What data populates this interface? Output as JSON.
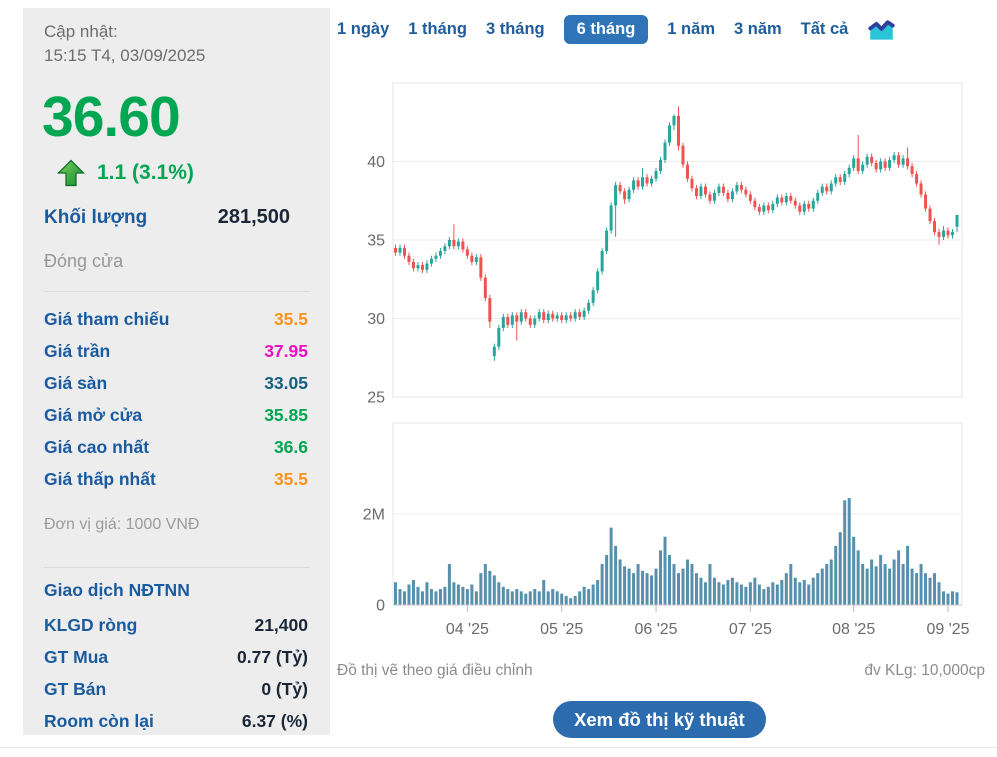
{
  "quote_panel": {
    "updated_label": "Cập nhật:",
    "updated_time": "15:15 T4, 03/09/2025",
    "price": "36.60",
    "change": "1.1 (3.1%)",
    "change_direction": "up",
    "volume_label": "Khối lượng",
    "volume_value": "281,500",
    "close_label": "Đóng cửa",
    "price_rows": [
      {
        "label": "Giá tham chiếu",
        "value": "35.5",
        "color": "#F7941E"
      },
      {
        "label": "Giá trần",
        "value": "37.95",
        "color": "#EB0FC4"
      },
      {
        "label": "Giá sàn",
        "value": "33.05",
        "color": "#17607F"
      },
      {
        "label": "Giá mở cửa",
        "value": "35.85",
        "color": "#00A651"
      },
      {
        "label": "Giá cao nhất",
        "value": "36.6",
        "color": "#00A651"
      },
      {
        "label": "Giá thấp nhất",
        "value": "35.5",
        "color": "#F7941E"
      }
    ],
    "unit_note": "Đơn vị giá: 1000 VNĐ",
    "foreign_header": "Giao dịch NĐTNN",
    "foreign_rows": [
      {
        "label": "KLGD ròng",
        "value": "21,400"
      },
      {
        "label": "GT Mua",
        "value": "0.77 (Tỷ)"
      },
      {
        "label": "GT Bán",
        "value": "0 (Tỷ)"
      },
      {
        "label": "Room còn lại",
        "value": "6.37 (%)"
      }
    ]
  },
  "tabs": {
    "items": [
      {
        "label": "1 ngày",
        "key": "1-ngay"
      },
      {
        "label": "1 tháng",
        "key": "1-thang"
      },
      {
        "label": "3 tháng",
        "key": "3-thang"
      },
      {
        "label": "6 tháng",
        "key": "6-thang"
      },
      {
        "label": "1 năm",
        "key": "1-nam"
      },
      {
        "label": "3 năm",
        "key": "3-nam"
      },
      {
        "label": "Tất cả",
        "key": "tat-ca"
      }
    ],
    "selected_index": 3
  },
  "footnotes": {
    "left": "Đồ thị vẽ theo giá điều chỉnh",
    "right": "đv KLg: 10,000cp"
  },
  "button_label": "Xem đồ thị kỹ thuật",
  "colors": {
    "up_green": "#00A651",
    "candle_up": "#26A69A",
    "candle_down": "#EF5350",
    "volume_bar": "#5790AC",
    "accent_blue": "#1A5A9E",
    "selected_tab": "#2E74B6",
    "grid": "#ECECEC",
    "pane_border": "#E4E4E4",
    "axis_line": "#C9C9C9",
    "axis_text": "#6B6B6B"
  },
  "chart_data": {
    "type": "candlestick+volume",
    "title": "",
    "price_axis": {
      "ticks": [
        40,
        35,
        30,
        25
      ],
      "range": [
        25,
        45.4
      ],
      "unit": "1000 VND"
    },
    "volume_axis": {
      "tick_labels": [
        "2M",
        "0"
      ],
      "tick_values_millions": [
        2,
        0
      ],
      "range_millions": [
        0,
        4
      ]
    },
    "x_ticks": [
      "04 '25",
      "05 '25",
      "06 '25",
      "07 '25",
      "08 '25",
      "09 '25"
    ],
    "month_start_indices": [
      16,
      37,
      58,
      79,
      102,
      123
    ],
    "grid": true,
    "legend": false,
    "candles_ohlc": [
      [
        34.5,
        34.7,
        34.0,
        34.2
      ],
      [
        34.2,
        34.7,
        34.0,
        34.5
      ],
      [
        34.5,
        34.7,
        33.8,
        34.0
      ],
      [
        34.0,
        34.2,
        33.4,
        33.6
      ],
      [
        33.6,
        33.8,
        33.0,
        33.2
      ],
      [
        33.2,
        33.6,
        33.0,
        33.4
      ],
      [
        33.4,
        33.6,
        32.9,
        33.1
      ],
      [
        33.1,
        33.7,
        32.9,
        33.5
      ],
      [
        33.5,
        34.0,
        33.3,
        33.8
      ],
      [
        33.8,
        34.2,
        33.6,
        34.0
      ],
      [
        34.0,
        34.5,
        33.8,
        34.3
      ],
      [
        34.3,
        34.8,
        34.1,
        34.6
      ],
      [
        34.6,
        35.2,
        34.4,
        35.0
      ],
      [
        35.0,
        36.0,
        34.4,
        34.6
      ],
      [
        34.6,
        35.1,
        34.4,
        34.9
      ],
      [
        34.9,
        35.1,
        34.2,
        34.4
      ],
      [
        34.4,
        34.6,
        33.8,
        34.0
      ],
      [
        34.0,
        34.2,
        33.4,
        33.6
      ],
      [
        33.6,
        34.1,
        33.4,
        33.9
      ],
      [
        33.9,
        34.1,
        32.4,
        32.6
      ],
      [
        32.6,
        32.8,
        31.1,
        31.3
      ],
      [
        31.3,
        31.5,
        29.4,
        29.8
      ],
      [
        27.6,
        28.4,
        27.3,
        28.2
      ],
      [
        28.2,
        29.6,
        28.0,
        29.4
      ],
      [
        29.4,
        30.3,
        29.2,
        30.1
      ],
      [
        30.1,
        30.3,
        29.4,
        29.6
      ],
      [
        29.6,
        30.4,
        29.4,
        30.2
      ],
      [
        30.2,
        30.4,
        28.6,
        29.8
      ],
      [
        29.8,
        30.6,
        29.6,
        30.4
      ],
      [
        30.4,
        30.6,
        29.8,
        30.0
      ],
      [
        30.0,
        30.2,
        29.4,
        29.6
      ],
      [
        29.6,
        30.2,
        29.4,
        30.0
      ],
      [
        30.0,
        30.6,
        29.8,
        30.4
      ],
      [
        30.4,
        30.6,
        29.7,
        29.9
      ],
      [
        29.9,
        30.5,
        29.7,
        30.3
      ],
      [
        30.3,
        30.5,
        29.8,
        30.0
      ],
      [
        30.0,
        30.4,
        29.8,
        30.2
      ],
      [
        30.2,
        30.4,
        29.7,
        29.9
      ],
      [
        29.9,
        30.4,
        29.7,
        30.2
      ],
      [
        30.2,
        30.4,
        29.8,
        30.0
      ],
      [
        30.0,
        30.6,
        29.8,
        30.4
      ],
      [
        30.4,
        30.6,
        29.9,
        30.1
      ],
      [
        30.1,
        30.7,
        29.9,
        30.5
      ],
      [
        30.5,
        31.2,
        30.3,
        31.0
      ],
      [
        31.0,
        32.0,
        30.8,
        31.8
      ],
      [
        31.8,
        33.2,
        31.6,
        33.0
      ],
      [
        33.0,
        34.5,
        32.8,
        34.3
      ],
      [
        34.3,
        35.8,
        34.1,
        35.6
      ],
      [
        35.6,
        37.4,
        35.4,
        37.2
      ],
      [
        37.2,
        38.7,
        35.2,
        38.5
      ],
      [
        38.5,
        38.7,
        37.9,
        38.1
      ],
      [
        38.1,
        38.3,
        37.3,
        37.6
      ],
      [
        37.6,
        38.4,
        37.4,
        38.2
      ],
      [
        38.2,
        39.0,
        38.0,
        38.8
      ],
      [
        38.8,
        39.0,
        38.2,
        38.4
      ],
      [
        38.4,
        39.6,
        38.2,
        39.0
      ],
      [
        39.0,
        39.2,
        38.4,
        38.6
      ],
      [
        38.6,
        39.1,
        38.4,
        38.9
      ],
      [
        38.9,
        39.6,
        38.7,
        39.4
      ],
      [
        39.4,
        40.3,
        39.2,
        40.1
      ],
      [
        40.1,
        41.4,
        39.9,
        41.2
      ],
      [
        41.2,
        42.5,
        41.0,
        42.3
      ],
      [
        42.3,
        43.0,
        42.0,
        42.9
      ],
      [
        42.9,
        43.5,
        40.7,
        41.0
      ],
      [
        41.0,
        41.2,
        39.6,
        39.8
      ],
      [
        39.8,
        40.0,
        38.7,
        38.9
      ],
      [
        38.9,
        39.1,
        38.1,
        38.3
      ],
      [
        38.3,
        38.5,
        37.6,
        37.8
      ],
      [
        37.8,
        38.6,
        37.6,
        38.4
      ],
      [
        38.4,
        38.6,
        37.7,
        37.9
      ],
      [
        37.9,
        38.1,
        37.3,
        37.5
      ],
      [
        37.5,
        38.2,
        37.3,
        38.0
      ],
      [
        38.0,
        38.6,
        37.8,
        38.4
      ],
      [
        38.4,
        38.6,
        37.8,
        38.0
      ],
      [
        38.0,
        38.2,
        37.4,
        37.6
      ],
      [
        37.6,
        38.3,
        37.4,
        38.1
      ],
      [
        38.1,
        38.7,
        37.9,
        38.5
      ],
      [
        38.5,
        38.7,
        38.0,
        38.2
      ],
      [
        38.2,
        38.4,
        37.7,
        37.9
      ],
      [
        37.9,
        38.1,
        37.3,
        37.5
      ],
      [
        37.5,
        37.7,
        36.9,
        37.1
      ],
      [
        37.1,
        37.3,
        36.6,
        36.8
      ],
      [
        36.8,
        37.4,
        36.6,
        37.2
      ],
      [
        37.2,
        37.4,
        36.7,
        36.9
      ],
      [
        36.9,
        37.5,
        36.7,
        37.3
      ],
      [
        37.3,
        37.9,
        37.1,
        37.7
      ],
      [
        37.7,
        37.9,
        37.2,
        37.4
      ],
      [
        37.4,
        38.0,
        37.2,
        37.8
      ],
      [
        37.8,
        38.0,
        37.3,
        37.5
      ],
      [
        37.5,
        37.7,
        37.0,
        37.2
      ],
      [
        37.2,
        37.4,
        36.6,
        36.8
      ],
      [
        36.8,
        37.5,
        36.6,
        37.3
      ],
      [
        37.3,
        37.5,
        36.8,
        37.0
      ],
      [
        37.0,
        37.7,
        36.8,
        37.5
      ],
      [
        37.5,
        38.2,
        37.3,
        38.0
      ],
      [
        38.0,
        38.6,
        37.8,
        38.4
      ],
      [
        38.4,
        38.6,
        37.9,
        38.1
      ],
      [
        38.1,
        38.8,
        37.9,
        38.6
      ],
      [
        38.6,
        39.2,
        38.4,
        39.0
      ],
      [
        39.0,
        39.2,
        38.5,
        38.7
      ],
      [
        38.7,
        39.4,
        38.5,
        39.2
      ],
      [
        39.2,
        39.8,
        39.0,
        39.6
      ],
      [
        39.6,
        40.4,
        39.4,
        40.2
      ],
      [
        40.2,
        41.7,
        39.2,
        39.4
      ],
      [
        39.4,
        40.0,
        39.2,
        39.8
      ],
      [
        39.8,
        40.5,
        39.6,
        40.3
      ],
      [
        40.3,
        40.5,
        39.7,
        39.9
      ],
      [
        39.9,
        40.1,
        39.3,
        39.5
      ],
      [
        39.5,
        40.2,
        39.3,
        40.0
      ],
      [
        40.0,
        40.2,
        39.4,
        39.6
      ],
      [
        39.6,
        40.3,
        39.4,
        40.1
      ],
      [
        40.1,
        40.6,
        39.9,
        40.4
      ],
      [
        40.4,
        40.6,
        39.6,
        39.8
      ],
      [
        39.8,
        40.4,
        39.6,
        40.2
      ],
      [
        40.2,
        40.9,
        39.5,
        39.7
      ],
      [
        39.7,
        39.9,
        39.0,
        39.2
      ],
      [
        39.2,
        39.4,
        38.4,
        38.6
      ],
      [
        38.6,
        38.8,
        37.7,
        37.9
      ],
      [
        37.9,
        38.1,
        36.8,
        37.0
      ],
      [
        37.0,
        37.2,
        36.0,
        36.2
      ],
      [
        36.2,
        36.4,
        35.3,
        35.5
      ],
      [
        35.5,
        35.7,
        34.7,
        35.2
      ],
      [
        35.2,
        35.9,
        35.0,
        35.6
      ],
      [
        35.6,
        35.8,
        35.1,
        35.3
      ],
      [
        35.3,
        35.7,
        35.1,
        35.5
      ],
      [
        35.85,
        36.6,
        35.5,
        36.6
      ]
    ],
    "volumes_millions": [
      0.5,
      0.35,
      0.3,
      0.45,
      0.55,
      0.4,
      0.3,
      0.5,
      0.35,
      0.3,
      0.35,
      0.4,
      0.9,
      0.5,
      0.45,
      0.4,
      0.35,
      0.45,
      0.3,
      0.7,
      0.9,
      0.75,
      0.65,
      0.5,
      0.4,
      0.35,
      0.3,
      0.35,
      0.3,
      0.25,
      0.3,
      0.35,
      0.3,
      0.55,
      0.3,
      0.35,
      0.3,
      0.25,
      0.2,
      0.15,
      0.2,
      0.3,
      0.4,
      0.35,
      0.45,
      0.55,
      0.9,
      1.1,
      1.7,
      1.3,
      1.0,
      0.85,
      0.8,
      0.7,
      0.9,
      0.75,
      0.7,
      0.65,
      0.8,
      1.2,
      1.5,
      1.1,
      0.9,
      0.7,
      0.8,
      1.0,
      0.9,
      0.7,
      0.6,
      0.5,
      0.9,
      0.6,
      0.5,
      0.45,
      0.55,
      0.6,
      0.5,
      0.45,
      0.4,
      0.5,
      0.6,
      0.45,
      0.35,
      0.4,
      0.5,
      0.45,
      0.55,
      0.7,
      0.9,
      0.6,
      0.5,
      0.55,
      0.45,
      0.6,
      0.7,
      0.8,
      0.9,
      1.0,
      1.3,
      1.6,
      2.3,
      2.35,
      1.5,
      1.2,
      0.9,
      0.8,
      1.0,
      0.85,
      1.1,
      0.9,
      0.8,
      1.0,
      1.2,
      0.9,
      1.3,
      0.8,
      0.7,
      0.9,
      0.7,
      0.6,
      0.7,
      0.5,
      0.3,
      0.25,
      0.3,
      0.28
    ]
  }
}
